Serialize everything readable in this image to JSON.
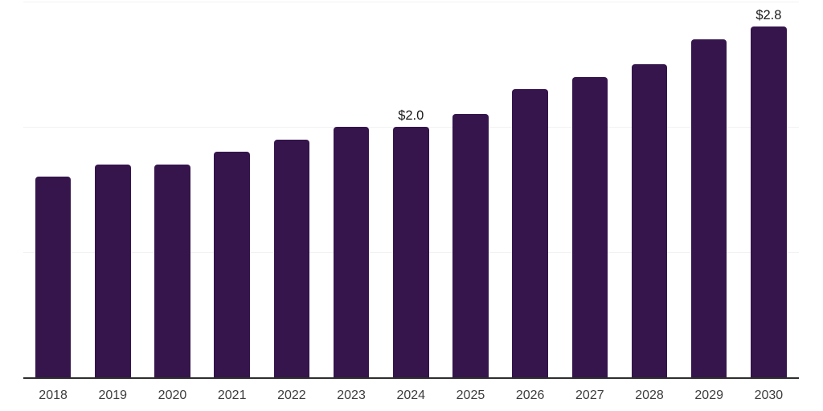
{
  "chart_data": {
    "type": "bar",
    "title": "",
    "xlabel": "",
    "ylabel": "",
    "categories": [
      "2018",
      "2019",
      "2020",
      "2021",
      "2022",
      "2023",
      "2024",
      "2025",
      "2026",
      "2027",
      "2028",
      "2029",
      "2030"
    ],
    "values": [
      1.6,
      1.7,
      1.7,
      1.8,
      1.9,
      2.0,
      2.0,
      2.1,
      2.3,
      2.4,
      2.5,
      2.7,
      2.8
    ],
    "data_labels": [
      "",
      "",
      "",
      "",
      "",
      "",
      "$2.0",
      "",
      "",
      "",
      "",
      "",
      "$2.8"
    ],
    "value_unit_prefix": "$",
    "ylim": [
      0,
      3
    ],
    "gridline_values": [
      1,
      2,
      3
    ],
    "grid": "horizontal",
    "legend_position": "none",
    "colors": {
      "bar": "#35154C",
      "gridline": "#f2f2f2",
      "axis_line": "#2e2e2e",
      "data_label_text": "#1a1a1a",
      "tick_label_text": "#3d3d3d",
      "background": "#ffffff"
    }
  }
}
